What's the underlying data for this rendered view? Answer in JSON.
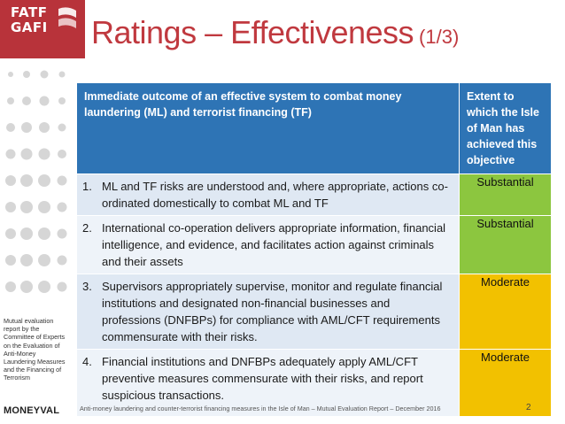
{
  "logo": {
    "line1": "FATF",
    "line2": "GAFI"
  },
  "title": {
    "main": "Ratings – Effectiveness",
    "part": "(1/3)"
  },
  "sidebar": {
    "note": "Mutual evaluation report by the Committee of Experts on the Evaluation of Anti-Money Laundering Measures and the Financing of Terrorism",
    "brand": "MONEYVAL"
  },
  "table": {
    "header": {
      "outcome": "Immediate outcome of an effective system to combat money laundering (ML) and terrorist financing (TF)",
      "rating": "Extent to which the Isle of Man has achieved this objective"
    },
    "rows": [
      {
        "num": "1.",
        "text": "ML and TF risks are understood and, where appropriate, actions co-ordinated domestically to combat ML and TF",
        "rating": "Substantial",
        "color": "#8cc63f"
      },
      {
        "num": "2.",
        "text": "International co-operation delivers appropriate information, financial intelligence, and evidence, and facilitates action against criminals and  their assets",
        "rating": "Substantial",
        "color": "#8cc63f"
      },
      {
        "num": "3.",
        "text": "Supervisors appropriately supervise, monitor and regulate financial institutions and designated non-financial businesses and professions (DNFBPs) for compliance with AML/CFT requirements commensurate with their risks.",
        "rating": "Moderate",
        "color": "#f2c100"
      },
      {
        "num": "4.",
        "text": "Financial institutions and DNFBPs adequately apply AML/CFT preventive measures commensurate with their risks, and report suspicious transactions.",
        "rating": "Moderate",
        "color": "#f2c100"
      }
    ]
  },
  "footer": {
    "text": "Anti-money laundering and counter-terrorist financing measures in the Isle of Man – Mutual Evaluation Report – December 2016",
    "page": "2"
  },
  "colors": {
    "brand_red": "#b8333a",
    "title_red": "#c0393f",
    "header_blue": "#2e74b5",
    "substantial_green": "#8cc63f",
    "moderate_yellow": "#f2c100"
  }
}
